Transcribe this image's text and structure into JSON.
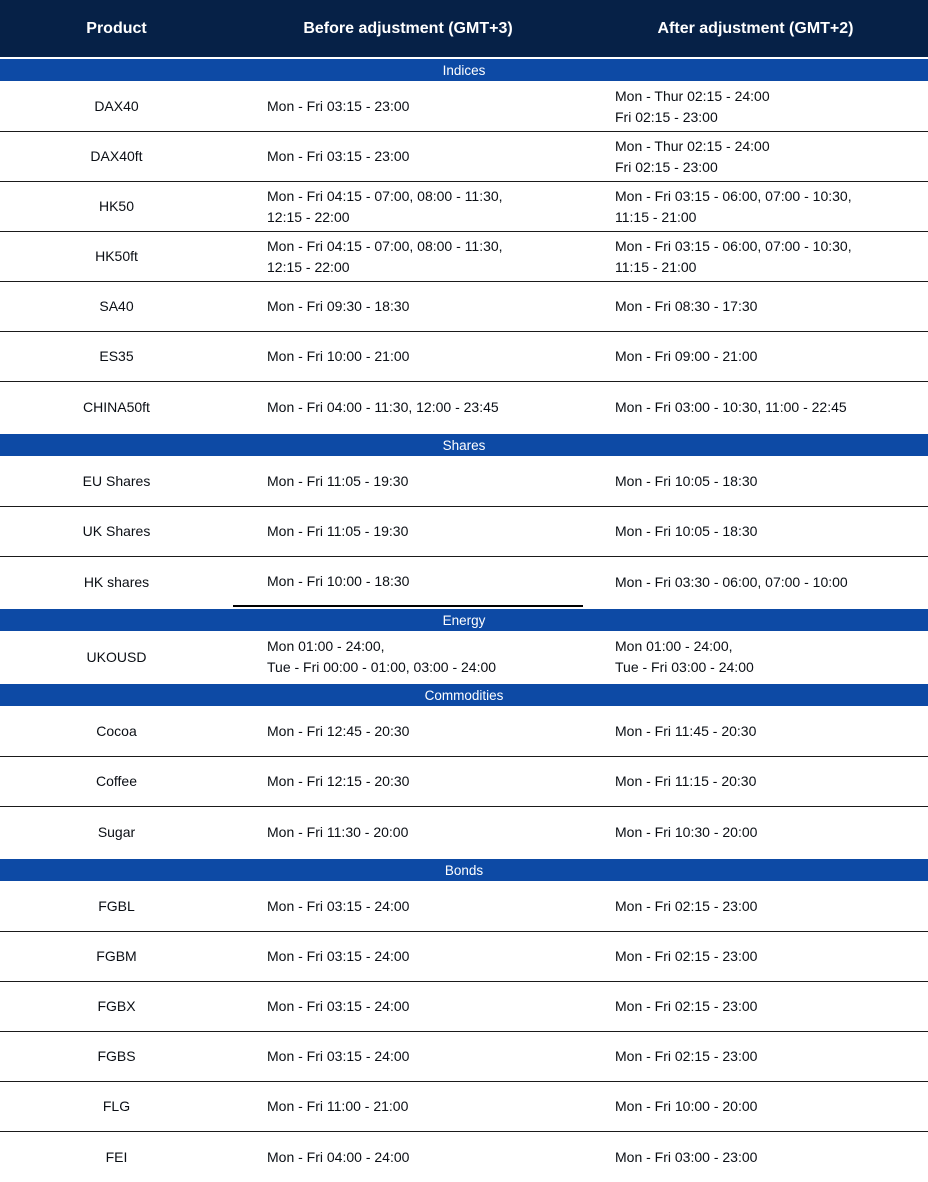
{
  "colors": {
    "header_bg": "#062147",
    "section_bg": "#0d4aa5",
    "row_border": "#1a1a1a",
    "text": "#0a0e14",
    "header_text": "#ffffff",
    "row_bg": "#ffffff"
  },
  "table": {
    "columns": [
      "Product",
      "Before adjustment (GMT+3)",
      "After adjustment (GMT+2)"
    ],
    "sections": [
      {
        "name": "Indices",
        "rows": [
          {
            "product": "DAX40",
            "before": "Mon - Fri 03:15 - 23:00",
            "after": "Mon - Thur 02:15 - 24:00\nFri 02:15 - 23:00"
          },
          {
            "product": "DAX40ft",
            "before": "Mon - Fri 03:15 - 23:00",
            "after": "Mon - Thur 02:15 - 24:00\nFri 02:15 - 23:00"
          },
          {
            "product": "HK50",
            "before": "Mon - Fri 04:15 - 07:00, 08:00 - 11:30,\n12:15 - 22:00",
            "after": "Mon - Fri 03:15 - 06:00, 07:00 - 10:30,\n11:15 - 21:00"
          },
          {
            "product": "HK50ft",
            "before": "Mon - Fri 04:15 - 07:00, 08:00 - 11:30,\n12:15 - 22:00",
            "after": "Mon - Fri 03:15 - 06:00, 07:00 - 10:30,\n11:15 - 21:00"
          },
          {
            "product": "SA40",
            "before": "Mon - Fri 09:30 - 18:30",
            "after": "Mon - Fri 08:30 - 17:30"
          },
          {
            "product": "ES35",
            "before": "Mon - Fri 10:00 - 21:00",
            "after": "Mon - Fri 09:00 - 21:00"
          },
          {
            "product": "CHINA50ft",
            "before": "Mon - Fri 04:00 - 11:30, 12:00 - 23:45",
            "after": "Mon - Fri 03:00 - 10:30, 11:00 - 22:45"
          }
        ]
      },
      {
        "name": "Shares",
        "rows": [
          {
            "product": "EU Shares",
            "before": "Mon - Fri 11:05 - 19:30",
            "after": "Mon - Fri 10:05 - 18:30"
          },
          {
            "product": "UK Shares",
            "before": "Mon - Fri 11:05 - 19:30",
            "after": "Mon - Fri 10:05 - 18:30"
          },
          {
            "product": "HK shares",
            "before": "Mon - Fri 10:00 - 18:30",
            "after": "Mon - Fri 03:30 - 06:00, 07:00 - 10:00",
            "mid_underline": true
          }
        ]
      },
      {
        "name": "Energy",
        "rows": [
          {
            "product": "UKOUSD",
            "before": "Mon 01:00 - 24:00,\nTue - Fri 00:00 - 01:00, 03:00 - 24:00",
            "after": "Mon 01:00 - 24:00,\nTue - Fri 03:00 - 24:00"
          }
        ]
      },
      {
        "name": "Commodities",
        "rows": [
          {
            "product": "Cocoa",
            "before": "Mon - Fri 12:45 - 20:30",
            "after": "Mon - Fri 11:45 - 20:30"
          },
          {
            "product": "Coffee",
            "before": "Mon - Fri 12:15 - 20:30",
            "after": "Mon - Fri 11:15 - 20:30"
          },
          {
            "product": "Sugar",
            "before": "Mon - Fri 11:30 - 20:00",
            "after": "Mon - Fri 10:30 - 20:00"
          }
        ]
      },
      {
        "name": "Bonds",
        "rows": [
          {
            "product": "FGBL",
            "before": "Mon - Fri 03:15 - 24:00",
            "after": "Mon - Fri 02:15 - 23:00"
          },
          {
            "product": "FGBM",
            "before": "Mon - Fri 03:15 - 24:00",
            "after": "Mon - Fri 02:15 - 23:00"
          },
          {
            "product": "FGBX",
            "before": "Mon - Fri 03:15 - 24:00",
            "after": "Mon - Fri 02:15 - 23:00"
          },
          {
            "product": "FGBS",
            "before": "Mon - Fri 03:15 - 24:00",
            "after": "Mon - Fri 02:15 - 23:00"
          },
          {
            "product": "FLG",
            "before": "Mon - Fri 11:00 - 21:00",
            "after": "Mon - Fri 10:00 - 20:00"
          },
          {
            "product": "FEI",
            "before": "Mon - Fri 04:00 - 24:00",
            "after": "Mon - Fri 03:00 - 23:00"
          }
        ]
      }
    ]
  }
}
